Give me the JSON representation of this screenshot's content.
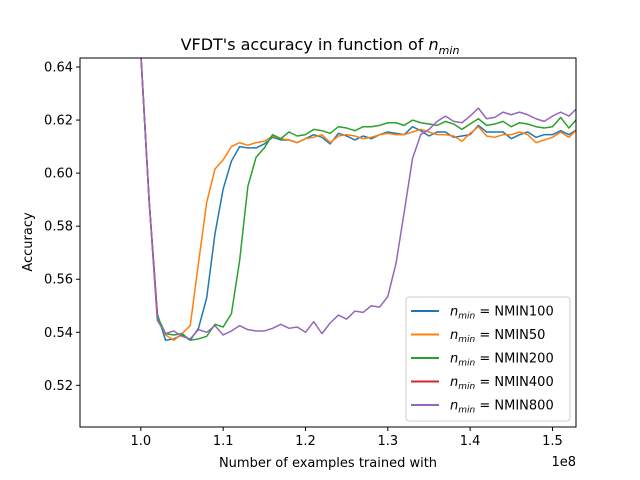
{
  "chart_data": {
    "type": "line",
    "title": "VFDT's accuracy in function of ",
    "title_symbol": "n",
    "title_subscript": "min",
    "xlabel": "Number of examples trained with",
    "x_offset_label": "1e8",
    "ylabel": "Accuracy",
    "xlim": [
      0.9261,
      1.5286
    ],
    "ylim": [
      0.5043,
      0.6434
    ],
    "xticks": [
      1.0,
      1.1,
      1.2,
      1.3,
      1.4,
      1.5
    ],
    "xtick_labels": [
      "1.0",
      "1.1",
      "1.2",
      "1.3",
      "1.4",
      "1.5"
    ],
    "yticks": [
      0.52,
      0.54,
      0.56,
      0.58,
      0.6,
      0.62,
      0.64
    ],
    "ytick_labels": [
      "0.52",
      "0.54",
      "0.56",
      "0.58",
      "0.60",
      "0.62",
      "0.64"
    ],
    "legend_position": "lower-right",
    "legend_prefix": "n",
    "legend_prefix_sub": "min",
    "legend_eq": "=",
    "series": [
      {
        "name": "NMIN100",
        "color": "#1f77b4",
        "x": [
          1.0,
          1.01,
          1.02,
          1.03,
          1.04,
          1.05,
          1.06,
          1.07,
          1.08,
          1.09,
          1.1,
          1.11,
          1.12,
          1.13,
          1.14,
          1.15,
          1.16,
          1.17,
          1.18,
          1.19,
          1.2,
          1.21,
          1.22,
          1.23,
          1.24,
          1.25,
          1.26,
          1.27,
          1.28,
          1.29,
          1.3,
          1.31,
          1.32,
          1.33,
          1.34,
          1.35,
          1.36,
          1.37,
          1.38,
          1.39,
          1.4,
          1.41,
          1.42,
          1.43,
          1.44,
          1.45,
          1.46,
          1.47,
          1.48,
          1.49,
          1.5,
          1.51,
          1.52,
          1.53
        ],
        "y": [
          0.645,
          0.59,
          0.547,
          0.537,
          0.5375,
          0.539,
          0.537,
          0.5415,
          0.553,
          0.577,
          0.594,
          0.6045,
          0.61,
          0.6095,
          0.6095,
          0.611,
          0.6135,
          0.6125,
          0.6125,
          0.6115,
          0.613,
          0.6145,
          0.6135,
          0.611,
          0.615,
          0.614,
          0.6125,
          0.614,
          0.613,
          0.6145,
          0.6155,
          0.615,
          0.6145,
          0.6175,
          0.616,
          0.614,
          0.6155,
          0.6155,
          0.6135,
          0.614,
          0.6145,
          0.618,
          0.6155,
          0.6155,
          0.6155,
          0.613,
          0.6145,
          0.6155,
          0.6135,
          0.6145,
          0.6145,
          0.616,
          0.6145,
          0.6165
        ]
      },
      {
        "name": "NMIN50",
        "color": "#ff7f0e",
        "x": [
          1.0,
          1.01,
          1.02,
          1.03,
          1.04,
          1.05,
          1.06,
          1.07,
          1.08,
          1.09,
          1.1,
          1.11,
          1.12,
          1.13,
          1.14,
          1.15,
          1.16,
          1.17,
          1.18,
          1.19,
          1.2,
          1.21,
          1.22,
          1.23,
          1.24,
          1.25,
          1.26,
          1.27,
          1.28,
          1.29,
          1.3,
          1.31,
          1.32,
          1.33,
          1.34,
          1.35,
          1.36,
          1.37,
          1.38,
          1.39,
          1.4,
          1.41,
          1.42,
          1.43,
          1.44,
          1.45,
          1.46,
          1.47,
          1.48,
          1.49,
          1.5,
          1.51,
          1.52,
          1.53
        ],
        "y": [
          0.645,
          0.59,
          0.546,
          0.539,
          0.537,
          0.5395,
          0.5425,
          0.566,
          0.589,
          0.6015,
          0.605,
          0.61,
          0.6115,
          0.6105,
          0.6115,
          0.612,
          0.614,
          0.613,
          0.6125,
          0.6115,
          0.613,
          0.6135,
          0.6145,
          0.6115,
          0.614,
          0.6145,
          0.614,
          0.613,
          0.6135,
          0.6145,
          0.615,
          0.6145,
          0.6145,
          0.6155,
          0.6165,
          0.6155,
          0.6145,
          0.6145,
          0.614,
          0.612,
          0.615,
          0.6175,
          0.614,
          0.6135,
          0.6145,
          0.6145,
          0.6155,
          0.6145,
          0.6115,
          0.6125,
          0.6135,
          0.6155,
          0.6135,
          0.6165
        ]
      },
      {
        "name": "NMIN200",
        "color": "#2ca02c",
        "x": [
          1.0,
          1.01,
          1.02,
          1.03,
          1.04,
          1.05,
          1.06,
          1.07,
          1.08,
          1.09,
          1.1,
          1.11,
          1.12,
          1.13,
          1.14,
          1.15,
          1.16,
          1.17,
          1.18,
          1.19,
          1.2,
          1.21,
          1.22,
          1.23,
          1.24,
          1.25,
          1.26,
          1.27,
          1.28,
          1.29,
          1.3,
          1.31,
          1.32,
          1.33,
          1.34,
          1.35,
          1.36,
          1.37,
          1.38,
          1.39,
          1.4,
          1.41,
          1.42,
          1.43,
          1.44,
          1.45,
          1.46,
          1.47,
          1.48,
          1.49,
          1.5,
          1.51,
          1.52,
          1.53
        ],
        "y": [
          0.645,
          0.59,
          0.546,
          0.5395,
          0.539,
          0.5395,
          0.537,
          0.5375,
          0.5385,
          0.543,
          0.542,
          0.547,
          0.567,
          0.595,
          0.606,
          0.6095,
          0.6145,
          0.613,
          0.6155,
          0.614,
          0.6145,
          0.6165,
          0.616,
          0.615,
          0.6175,
          0.617,
          0.616,
          0.6175,
          0.6175,
          0.618,
          0.619,
          0.619,
          0.618,
          0.62,
          0.619,
          0.6185,
          0.618,
          0.6195,
          0.6185,
          0.6165,
          0.6185,
          0.6205,
          0.618,
          0.6185,
          0.6195,
          0.6175,
          0.619,
          0.6185,
          0.6175,
          0.617,
          0.6175,
          0.621,
          0.617,
          0.6205
        ]
      },
      {
        "name": "NMIN400",
        "color": "#d62728",
        "x": [
          1.0,
          1.01,
          1.02
        ],
        "y": [
          0.645,
          0.59,
          0.547
        ]
      },
      {
        "name": "NMIN800",
        "color": "#9467bd",
        "x": [
          1.0,
          1.01,
          1.02,
          1.03,
          1.04,
          1.05,
          1.06,
          1.07,
          1.08,
          1.09,
          1.1,
          1.11,
          1.12,
          1.13,
          1.14,
          1.15,
          1.16,
          1.17,
          1.18,
          1.19,
          1.2,
          1.21,
          1.22,
          1.23,
          1.24,
          1.25,
          1.26,
          1.27,
          1.28,
          1.29,
          1.3,
          1.31,
          1.32,
          1.33,
          1.34,
          1.35,
          1.36,
          1.37,
          1.38,
          1.39,
          1.4,
          1.41,
          1.42,
          1.43,
          1.44,
          1.45,
          1.46,
          1.47,
          1.48,
          1.49,
          1.5,
          1.51,
          1.52,
          1.53
        ],
        "y": [
          0.645,
          0.59,
          0.5445,
          0.5395,
          0.5405,
          0.5385,
          0.5375,
          0.541,
          0.54,
          0.5425,
          0.539,
          0.5405,
          0.5425,
          0.541,
          0.5405,
          0.5405,
          0.5415,
          0.543,
          0.5415,
          0.542,
          0.54,
          0.544,
          0.5395,
          0.5435,
          0.5465,
          0.545,
          0.548,
          0.5475,
          0.55,
          0.5495,
          0.5535,
          0.566,
          0.5855,
          0.6055,
          0.6145,
          0.6165,
          0.6195,
          0.6215,
          0.6195,
          0.619,
          0.6215,
          0.6245,
          0.6205,
          0.621,
          0.623,
          0.622,
          0.623,
          0.622,
          0.6205,
          0.6195,
          0.6215,
          0.623,
          0.6215,
          0.6245
        ]
      }
    ]
  }
}
